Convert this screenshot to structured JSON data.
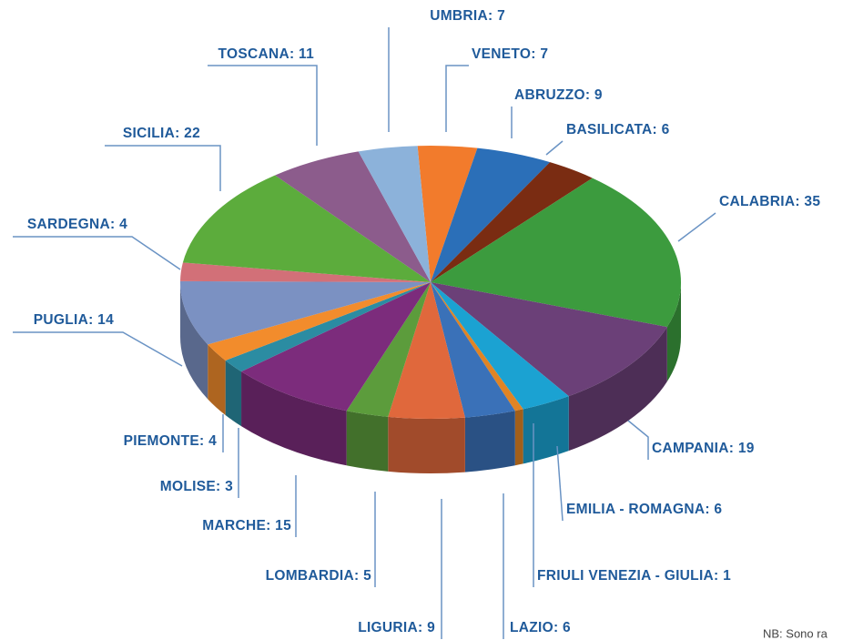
{
  "chart_data": {
    "type": "pie",
    "values": [
      7,
      9,
      6,
      35,
      19,
      6,
      1,
      6,
      9,
      5,
      15,
      3,
      4,
      14,
      4,
      22,
      11,
      7
    ],
    "value_labels": [
      "VENETO: 7",
      "ABRUZZO: 9",
      "BASILICATA: 6",
      "CALABRIA: 35",
      "CAMPANIA: 19",
      "EMILIA - ROMAGNA: 6",
      "FRIULI VENEZIA - GIULIA: 1",
      "LAZIO: 6",
      "LIGURIA: 9",
      "LOMBARDIA: 5",
      "MARCHE: 15",
      "MOLISE: 3",
      "PIEMONTE: 4",
      "PUGLIA: 14",
      "SARDEGNA: 4",
      "SICILIA: 22",
      "TOSCANA: 11",
      "UMBRIA: 7"
    ],
    "colors": [
      "#f27b2c",
      "#2b6fb8",
      "#7a2c12",
      "#3c9b3e",
      "#6b4078",
      "#1ba2d2",
      "#e08424",
      "#3a71b8",
      "#e0683c",
      "#5c9c3c",
      "#7c2c7c",
      "#2b8ca2",
      "#f28c2c",
      "#7b91c2",
      "#d27078",
      "#5cac3c",
      "#8c5c8c",
      "#8cb2da"
    ],
    "note": "NB: Sono ra"
  }
}
